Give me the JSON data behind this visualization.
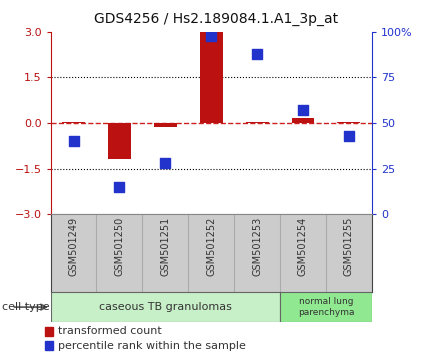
{
  "title": "GDS4256 / Hs2.189084.1.A1_3p_at",
  "samples": [
    "GSM501249",
    "GSM501250",
    "GSM501251",
    "GSM501252",
    "GSM501253",
    "GSM501254",
    "GSM501255"
  ],
  "transformed_counts": [
    0.02,
    -1.2,
    -0.12,
    3.0,
    0.02,
    0.15,
    0.02
  ],
  "percentile_ranks": [
    40,
    15,
    28,
    98,
    88,
    57,
    43
  ],
  "ylim_left": [
    -3,
    3
  ],
  "yticks_left": [
    -3,
    -1.5,
    0,
    1.5,
    3
  ],
  "yticks_right": [
    0,
    25,
    50,
    75,
    100
  ],
  "hlines": [
    1.5,
    -1.5
  ],
  "group1_n": 5,
  "group2_n": 2,
  "group1_label": "caseous TB granulomas",
  "group1_color": "#c8f0c8",
  "group2_label": "normal lung\nparenchyma",
  "group2_color": "#90e890",
  "bar_color": "#bb1111",
  "dot_color": "#2233cc",
  "bar_width": 0.5,
  "dot_size": 50,
  "legend_bar_label": "transformed count",
  "legend_dot_label": "percentile rank within the sample",
  "cell_type_label": "cell type",
  "background_color": "#ffffff",
  "plot_bg_color": "#ffffff",
  "zero_line_color": "#cc2222",
  "sample_box_color": "#cccccc",
  "sample_box_edge": "#aaaaaa"
}
